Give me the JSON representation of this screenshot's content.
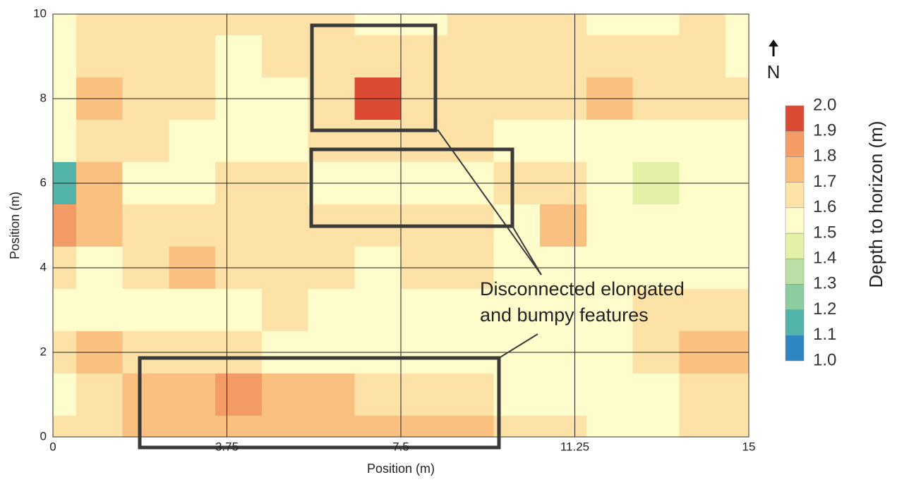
{
  "chart_data": {
    "type": "contour",
    "xlabel": "Position (m)",
    "ylabel": "Position (m)",
    "colorbar_label": "Depth to horizon (m)",
    "north_label": "N",
    "annotation": [
      "Disconnected elongated",
      "and bumpy features"
    ],
    "xlim": [
      0,
      15
    ],
    "ylim": [
      0,
      10
    ],
    "xticks": [
      0,
      3.75,
      7.5,
      11.25,
      15
    ],
    "yticks": [
      0,
      2,
      4,
      6,
      8,
      10
    ],
    "grid": true,
    "levels": [
      {
        "value": 1,
        "label": "1.0"
      },
      1.1,
      1.2,
      1.3,
      1.4,
      1.5,
      1.6,
      1.7,
      1.8,
      1.9,
      {
        "value": 2,
        "label": "2.0"
      }
    ],
    "level_colors": [
      "#2e86c0",
      "#52b4a8",
      "#8ccca0",
      "#b9dfa4",
      "#e3f0a8",
      "#fffccc",
      "#fce2a6",
      "#f9c080",
      "#f49c66",
      "#dc4a34"
    ],
    "x": [
      0,
      1,
      2,
      3,
      4,
      5,
      6,
      7,
      8,
      9,
      10,
      11,
      12,
      13,
      14,
      15
    ],
    "y": [
      0,
      1,
      2,
      3,
      4,
      5,
      6,
      7,
      8,
      9,
      10
    ],
    "z": [
      [
        1.65,
        1.65,
        1.75,
        1.75,
        1.75,
        1.75,
        1.75,
        1.75,
        1.75,
        1.75,
        1.65,
        1.65,
        1.55,
        1.55,
        1.65,
        1.65
      ],
      [
        1.55,
        1.65,
        1.75,
        1.75,
        1.85,
        1.75,
        1.75,
        1.65,
        1.65,
        1.65,
        1.55,
        1.55,
        1.55,
        1.55,
        1.65,
        1.65
      ],
      [
        1.65,
        1.75,
        1.65,
        1.65,
        1.65,
        1.55,
        1.55,
        1.55,
        1.55,
        1.55,
        1.55,
        1.55,
        1.55,
        1.65,
        1.75,
        1.75
      ],
      [
        1.55,
        1.55,
        1.55,
        1.55,
        1.55,
        1.65,
        1.55,
        1.55,
        1.55,
        1.55,
        1.55,
        1.55,
        1.55,
        1.65,
        1.65,
        1.65
      ],
      [
        1.65,
        1.55,
        1.65,
        1.75,
        1.65,
        1.65,
        1.65,
        1.55,
        1.65,
        1.65,
        1.55,
        1.55,
        1.55,
        1.55,
        1.55,
        1.55
      ],
      [
        1.85,
        1.75,
        1.65,
        1.65,
        1.65,
        1.65,
        1.65,
        1.65,
        1.65,
        1.65,
        1.55,
        1.75,
        1.55,
        1.55,
        1.55,
        1.55
      ],
      [
        1.15,
        1.75,
        1.55,
        1.55,
        1.65,
        1.65,
        1.55,
        1.55,
        1.55,
        1.55,
        1.65,
        1.65,
        1.55,
        1.45,
        1.55,
        1.55
      ],
      [
        1.55,
        1.65,
        1.65,
        1.55,
        1.55,
        1.55,
        1.65,
        1.65,
        1.65,
        1.65,
        1.55,
        1.55,
        1.55,
        1.55,
        1.55,
        1.55
      ],
      [
        1.55,
        1.75,
        1.65,
        1.65,
        1.55,
        1.55,
        1.65,
        1.95,
        1.65,
        1.65,
        1.65,
        1.65,
        1.75,
        1.65,
        1.65,
        1.65
      ],
      [
        1.55,
        1.65,
        1.65,
        1.65,
        1.55,
        1.65,
        1.65,
        1.65,
        1.65,
        1.65,
        1.65,
        1.65,
        1.65,
        1.65,
        1.65,
        1.55
      ],
      [
        1.55,
        1.65,
        1.65,
        1.65,
        1.65,
        1.65,
        1.65,
        1.55,
        1.55,
        1.65,
        1.65,
        1.65,
        1.55,
        1.55,
        1.65,
        1.55
      ]
    ]
  }
}
